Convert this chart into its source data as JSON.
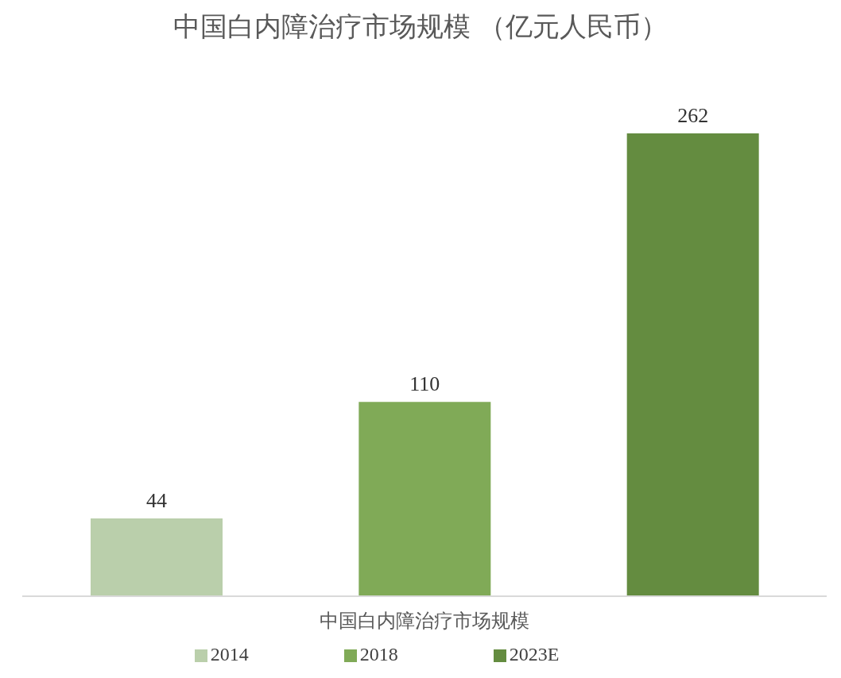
{
  "chart_data": {
    "type": "bar",
    "title": "中国白内障治疗市场规模 （亿元人民币）",
    "categories": [
      null,
      "中国白内障治疗市场规模",
      null
    ],
    "stacked": true,
    "series": [
      {
        "name": "2014",
        "color": "#bacfab",
        "values": [
          44,
          null,
          null
        ]
      },
      {
        "name": "2018",
        "color": "#80aa57",
        "values": [
          null,
          110,
          null
        ]
      },
      {
        "name": "2023E",
        "color": "#648c40",
        "values": [
          null,
          null,
          262
        ]
      }
    ],
    "data_labels": true,
    "legend": "bottom"
  }
}
